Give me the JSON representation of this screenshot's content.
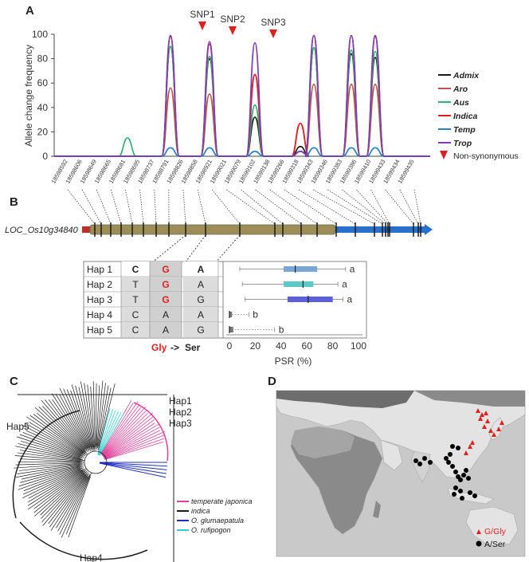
{
  "panels": {
    "a": "A",
    "b": "B",
    "c": "C",
    "d": "D"
  },
  "chart_data": {
    "type": "line",
    "ylabel": "Allele change frequency",
    "ylim": [
      0,
      100
    ],
    "yticks": [
      "0",
      "20",
      "40",
      "60",
      "80",
      "100"
    ],
    "snp_labels": [
      "SNP1",
      "SNP2",
      "SNP3"
    ],
    "positions": [
      "18598592",
      "18598606",
      "18598649",
      "18598665",
      "18598681",
      "18598695",
      "18598737",
      "18598791",
      "18598826",
      "18598858",
      "18598921",
      "18599021",
      "18599079",
      "18599102",
      "18599138",
      "18599266",
      "18599318",
      "18599343",
      "18599346",
      "18599383",
      "18599386",
      "18599410",
      "18599433",
      "18599434",
      "18599435"
    ],
    "peak_x": [
      74,
      88,
      103,
      118,
      134,
      160,
      182,
      200,
      214,
      220,
      235,
      263,
      288,
      306,
      320,
      347,
      377,
      394,
      409,
      411,
      441,
      445,
      471,
      484,
      492
    ],
    "series": [
      {
        "name": "Admix",
        "color": "#1a1a1a",
        "values": [
          0,
          0,
          0,
          0,
          0,
          0,
          0,
          0,
          90,
          0,
          0,
          80,
          0,
          0,
          32,
          0,
          8,
          89,
          0,
          0,
          84,
          0,
          81,
          0,
          0
        ]
      },
      {
        "name": "Aro",
        "color": "#c0504d",
        "values": [
          0,
          0,
          0,
          0,
          0,
          0,
          0,
          0,
          56,
          0,
          0,
          51,
          0,
          0,
          67,
          0,
          27,
          59,
          0,
          0,
          59,
          0,
          59,
          0,
          0
        ]
      },
      {
        "name": "Aus",
        "color": "#2bb673",
        "values": [
          0,
          0,
          0,
          0,
          0,
          15,
          0,
          0,
          90,
          0,
          0,
          82,
          0,
          0,
          42,
          0,
          4,
          89,
          0,
          0,
          87,
          0,
          86,
          0,
          0
        ]
      },
      {
        "name": "Indica",
        "color": "#e02020",
        "values": [
          0,
          0,
          0,
          0,
          0,
          0,
          0,
          0,
          98,
          0,
          0,
          92,
          0,
          0,
          67,
          0,
          27,
          99,
          0,
          0,
          99,
          0,
          98,
          0,
          0
        ]
      },
      {
        "name": "Temp",
        "color": "#2a7fc0",
        "values": [
          0,
          0,
          0,
          0,
          0,
          0,
          0,
          0,
          7,
          0,
          0,
          7,
          0,
          0,
          4,
          0,
          4,
          7,
          0,
          0,
          7,
          0,
          7,
          0,
          0
        ]
      },
      {
        "name": "Trop",
        "color": "#7b3fb5",
        "values": [
          0,
          0,
          0,
          0,
          0,
          0,
          0,
          0,
          99,
          0,
          0,
          94,
          0,
          0,
          93,
          0,
          4,
          99,
          0,
          0,
          99,
          0,
          99,
          0,
          0
        ]
      }
    ],
    "legend_extra": "Non-synonymous"
  },
  "gene": {
    "name": "LOC_Os10g34840"
  },
  "haplotypes": {
    "rows": [
      {
        "label": "Hap 1",
        "c1": "C",
        "c2": "G",
        "c3": "A"
      },
      {
        "label": "Hap 2",
        "c1": "T",
        "c2": "G",
        "c3": "A"
      },
      {
        "label": "Hap 3",
        "c1": "T",
        "c2": "G",
        "c3": "G"
      },
      {
        "label": "Hap 4",
        "c1": "C",
        "c2": "A",
        "c3": "A"
      },
      {
        "label": "Hap 5",
        "c1": "C",
        "c2": "A",
        "c3": "G"
      }
    ],
    "mutation_from": "Gly",
    "arrow": "->",
    "mutation_to": "Ser"
  },
  "psr": {
    "xlabel": "PSR (%)",
    "xticks": [
      "0",
      "20",
      "40",
      "60",
      "80",
      "100"
    ],
    "groups": [
      "a",
      "a",
      "a",
      "b",
      "b"
    ],
    "boxes": [
      {
        "min": 8,
        "q1": 42,
        "med": 51,
        "q3": 68,
        "max": 90,
        "color": "#7aa6d6"
      },
      {
        "min": 10,
        "q1": 42,
        "med": 57,
        "q3": 65,
        "max": 84,
        "color": "#5cc8c8"
      },
      {
        "min": 12,
        "q1": 45,
        "med": 61,
        "q3": 80,
        "max": 88,
        "color": "#5b5fd8"
      },
      {
        "min": 0,
        "q1": 0,
        "med": 0,
        "q3": 2,
        "max": 15,
        "color": "#777777"
      },
      {
        "min": 0,
        "q1": 0,
        "med": 0,
        "q3": 3,
        "max": 35,
        "color": "#777777"
      }
    ]
  },
  "tree": {
    "hap_labels": [
      "Hap1",
      "Hap2",
      "Hap3",
      "Hap5",
      "Hap4"
    ],
    "legend": [
      {
        "label": "temperate japonica",
        "color": "#e0409a"
      },
      {
        "label": "indica",
        "color": "#1a1a1a"
      },
      {
        "label": "O. glumaepatula",
        "color": "#2030c0"
      },
      {
        "label": "O. rufipogon",
        "color": "#30d0d0"
      }
    ]
  },
  "map": {
    "legend": [
      {
        "label": "G/Gly",
        "color": "#e02020"
      },
      {
        "label": "A/Ser",
        "color": "#000000"
      }
    ]
  }
}
